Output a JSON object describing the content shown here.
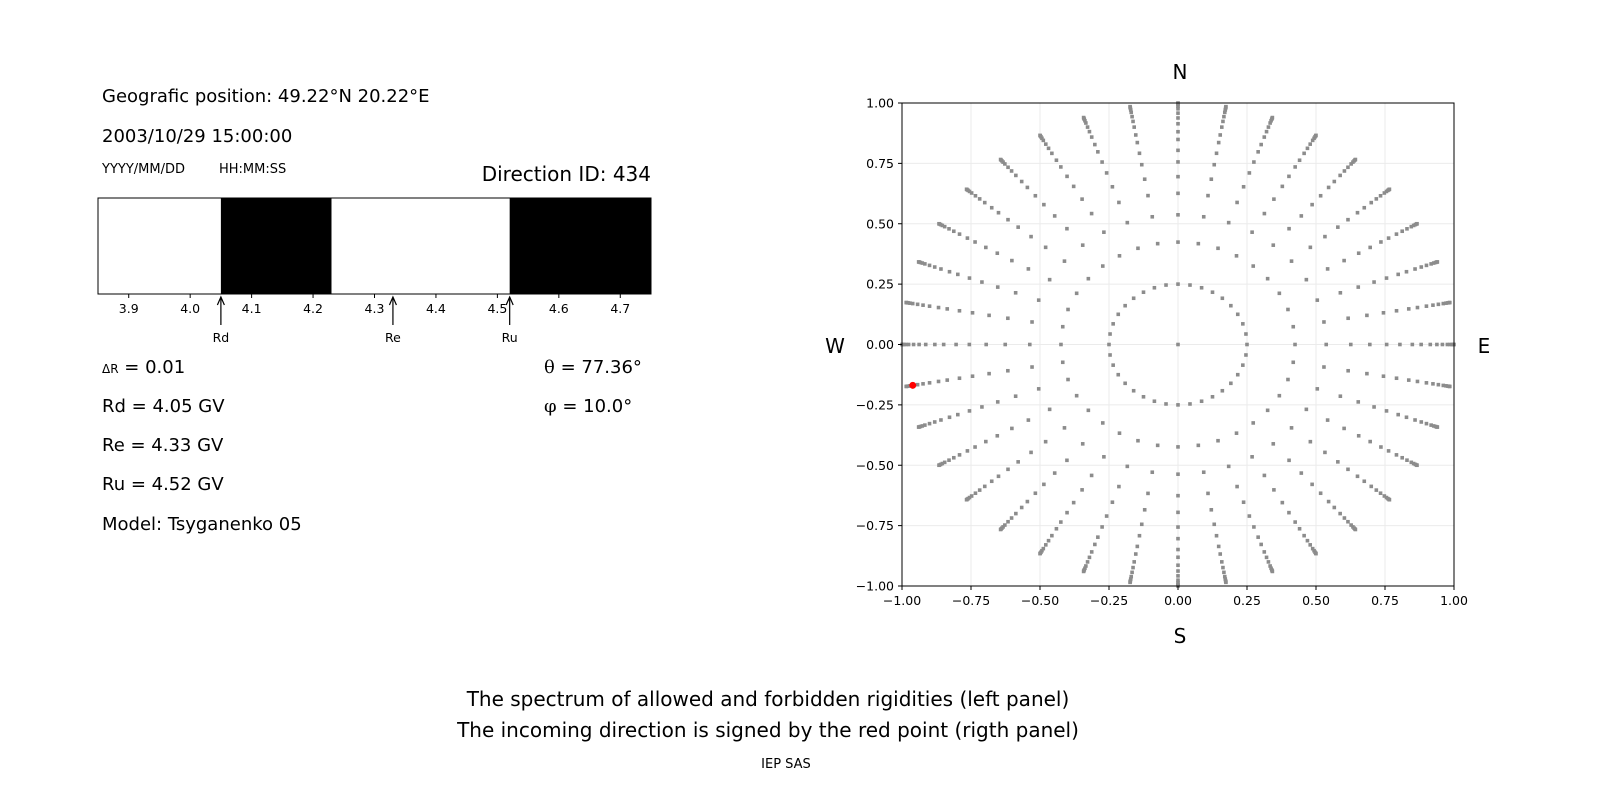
{
  "left_panel": {
    "position_label": "Geografic position: 49.22°N 20.22°E",
    "datetime": "2003/10/29 15:00:00",
    "date_format": "YYYY/MM/DD",
    "time_format": "HH:MM:SS",
    "direction_id": "Direction ID: 434",
    "delta_r_symbol": "ΔR",
    "delta_r_value": " = 0.01",
    "rd_text": "Rd = 4.05 GV",
    "re_text": "Re = 4.33 GV",
    "ru_text": "Ru = 4.52 GV",
    "model_text": "Model: Tsyganenko 05",
    "theta_symbol": "θ",
    "theta_value": " = 77.36°",
    "phi_symbol": "φ",
    "phi_value": " = 10.0°"
  },
  "footer": {
    "line1": "The spectrum of allowed and forbidden rigidities (left panel)",
    "line2": "The incoming direction is signed by the red point (rigth panel)",
    "credit": "IEP SAS"
  },
  "chart_data": [
    {
      "type": "bar",
      "description_kind": "rigidity spectrum band",
      "xlim": [
        3.85,
        4.75
      ],
      "xticks": [
        "3.9",
        "4.0",
        "4.1",
        "4.2",
        "4.3",
        "4.4",
        "4.5",
        "4.6",
        "4.7"
      ],
      "forbidden_bands": [
        [
          4.05,
          4.23
        ],
        [
          4.52,
          4.75
        ]
      ],
      "band_colors": {
        "allowed": "#ffffff",
        "forbidden": "#000000"
      },
      "markers": [
        {
          "label": "Rd",
          "value": 4.05
        },
        {
          "label": "Re",
          "value": 4.33
        },
        {
          "label": "Ru",
          "value": 4.52
        }
      ]
    },
    {
      "type": "scatter",
      "xlim": [
        -1.0,
        1.0
      ],
      "ylim": [
        -1.0,
        1.0
      ],
      "grid": true,
      "xticks": [
        "−1.00",
        "−0.75",
        "−0.50",
        "−0.25",
        "0.00",
        "0.25",
        "0.50",
        "0.75",
        "1.00"
      ],
      "yticks": [
        "1.00",
        "0.75",
        "0.50",
        "0.25",
        "0.00",
        "−0.25",
        "−0.50",
        "−0.75",
        "−1.00"
      ],
      "compass": {
        "north": "N",
        "south": "S",
        "west": "W",
        "east": "E"
      },
      "point_color": "#8c8c8c",
      "highlight_color": "#ff0000",
      "center_point": [
        0,
        0
      ],
      "inner_ring_radius": 0.25,
      "inner_ring_count": 36,
      "spoke_count": 36,
      "spoke_radii": [
        0.424,
        0.537,
        0.626,
        0.695,
        0.756,
        0.804,
        0.849,
        0.881,
        0.914,
        0.938,
        0.958,
        0.976,
        0.986,
        0.993,
        0.998,
        1.0
      ],
      "highlight_point": [
        -0.961,
        -0.169
      ]
    }
  ]
}
